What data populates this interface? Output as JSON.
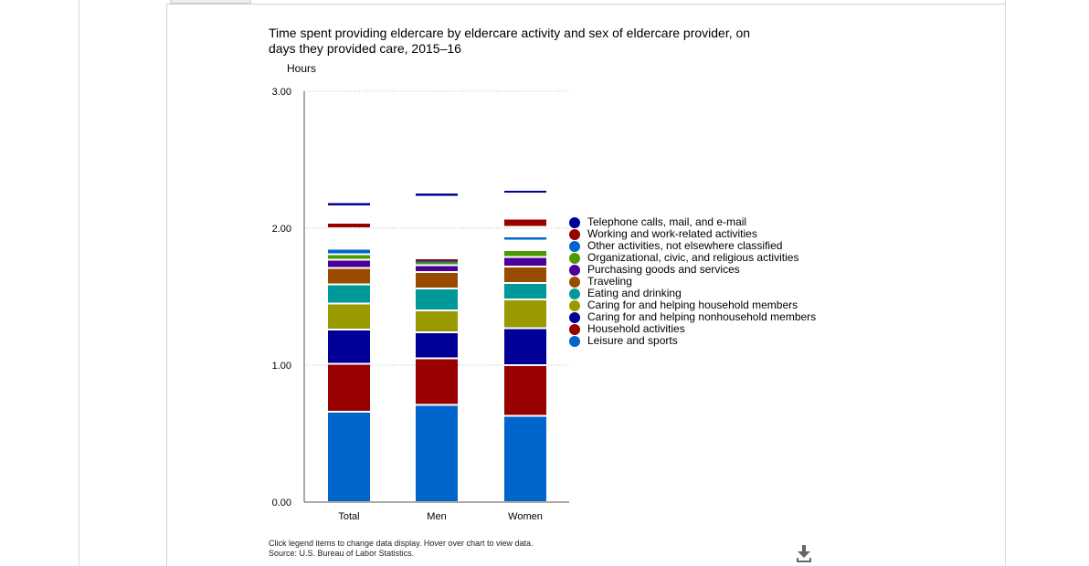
{
  "chart_data": {
    "type": "bar",
    "stacked": true,
    "title": "Time spent providing eldercare by eldercare activity and sex of eldercare provider, on days they provided care, 2015–16",
    "ylabel": "Hours",
    "xlabel": "",
    "ylim": [
      0,
      3
    ],
    "yticks": [
      "0.00",
      "1.00",
      "2.00",
      "3.00"
    ],
    "categories": [
      "Total",
      "Men",
      "Women"
    ],
    "grid": true,
    "legend_position": "right",
    "series": [
      {
        "name": "Leisure and sports",
        "color": "#0066cc",
        "values": [
          0.66,
          0.71,
          0.63
        ]
      },
      {
        "name": "Household activities",
        "color": "#990000",
        "values": [
          0.35,
          0.34,
          0.37
        ]
      },
      {
        "name": "Caring for and helping nonhousehold members",
        "color": "#000099",
        "values": [
          0.25,
          0.19,
          0.27
        ]
      },
      {
        "name": "Caring for and helping household members",
        "color": "#999900",
        "values": [
          0.19,
          0.16,
          0.21
        ]
      },
      {
        "name": "Eating and drinking",
        "color": "#009999",
        "values": [
          0.14,
          0.16,
          0.12
        ]
      },
      {
        "name": "Traveling",
        "color": "#994c00",
        "values": [
          0.12,
          0.12,
          0.12
        ]
      },
      {
        "name": "Purchasing goods and services",
        "color": "#4c0099",
        "values": [
          0.06,
          0.05,
          0.07
        ]
      },
      {
        "name": "Organizational, civic, and religious activities",
        "color": "#4c9900",
        "values": [
          0.04,
          0.03,
          0.05
        ]
      },
      {
        "name": "Other activities, not elsewhere classified",
        "color": "#0066cc",
        "values": [
          0.04,
          0.01,
          0.03
        ]
      },
      {
        "name": "Working and work-related activities",
        "color": "#990000",
        "values": [
          0.04,
          0.01,
          0.06
        ]
      },
      {
        "name": "Telephone calls, mail, and e-mail",
        "color": "#000099",
        "values": [
          0.03,
          0.03,
          0.02
        ]
      }
    ],
    "gaps": [
      [
        0,
        0,
        0,
        0,
        0,
        0,
        0,
        0,
        0.0,
        0.15,
        0.12
      ],
      [
        0,
        0,
        0,
        0,
        0,
        0,
        0,
        0,
        0,
        0,
        0.45
      ],
      [
        0,
        0,
        0,
        0,
        0,
        0,
        0,
        0,
        0.07,
        0.07,
        0.19
      ]
    ]
  },
  "legend_order": [
    10,
    9,
    8,
    7,
    6,
    5,
    4,
    3,
    2,
    1,
    0
  ],
  "footnote": {
    "line1": "Click legend items to change data display. Hover over chart to view data.",
    "line2": "Source: U.S. Bureau of Labor Statistics."
  }
}
